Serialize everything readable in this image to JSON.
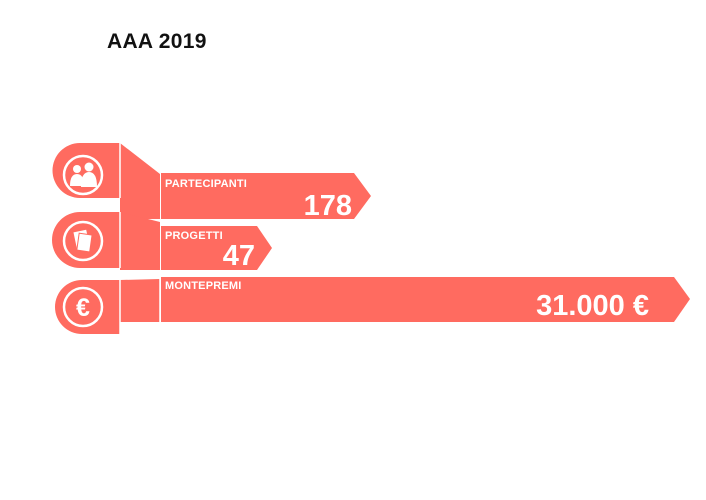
{
  "title": "AAA 2019",
  "accent_color": "#ff6b60",
  "rows": [
    {
      "label": "PARTECIPANTI",
      "value": "178",
      "icon": "people-icon"
    },
    {
      "label": "PROGETTI",
      "value": "47",
      "icon": "documents-icon"
    },
    {
      "label": "MONTEPREMI",
      "value": "31.000 €",
      "icon": "euro-icon"
    }
  ]
}
